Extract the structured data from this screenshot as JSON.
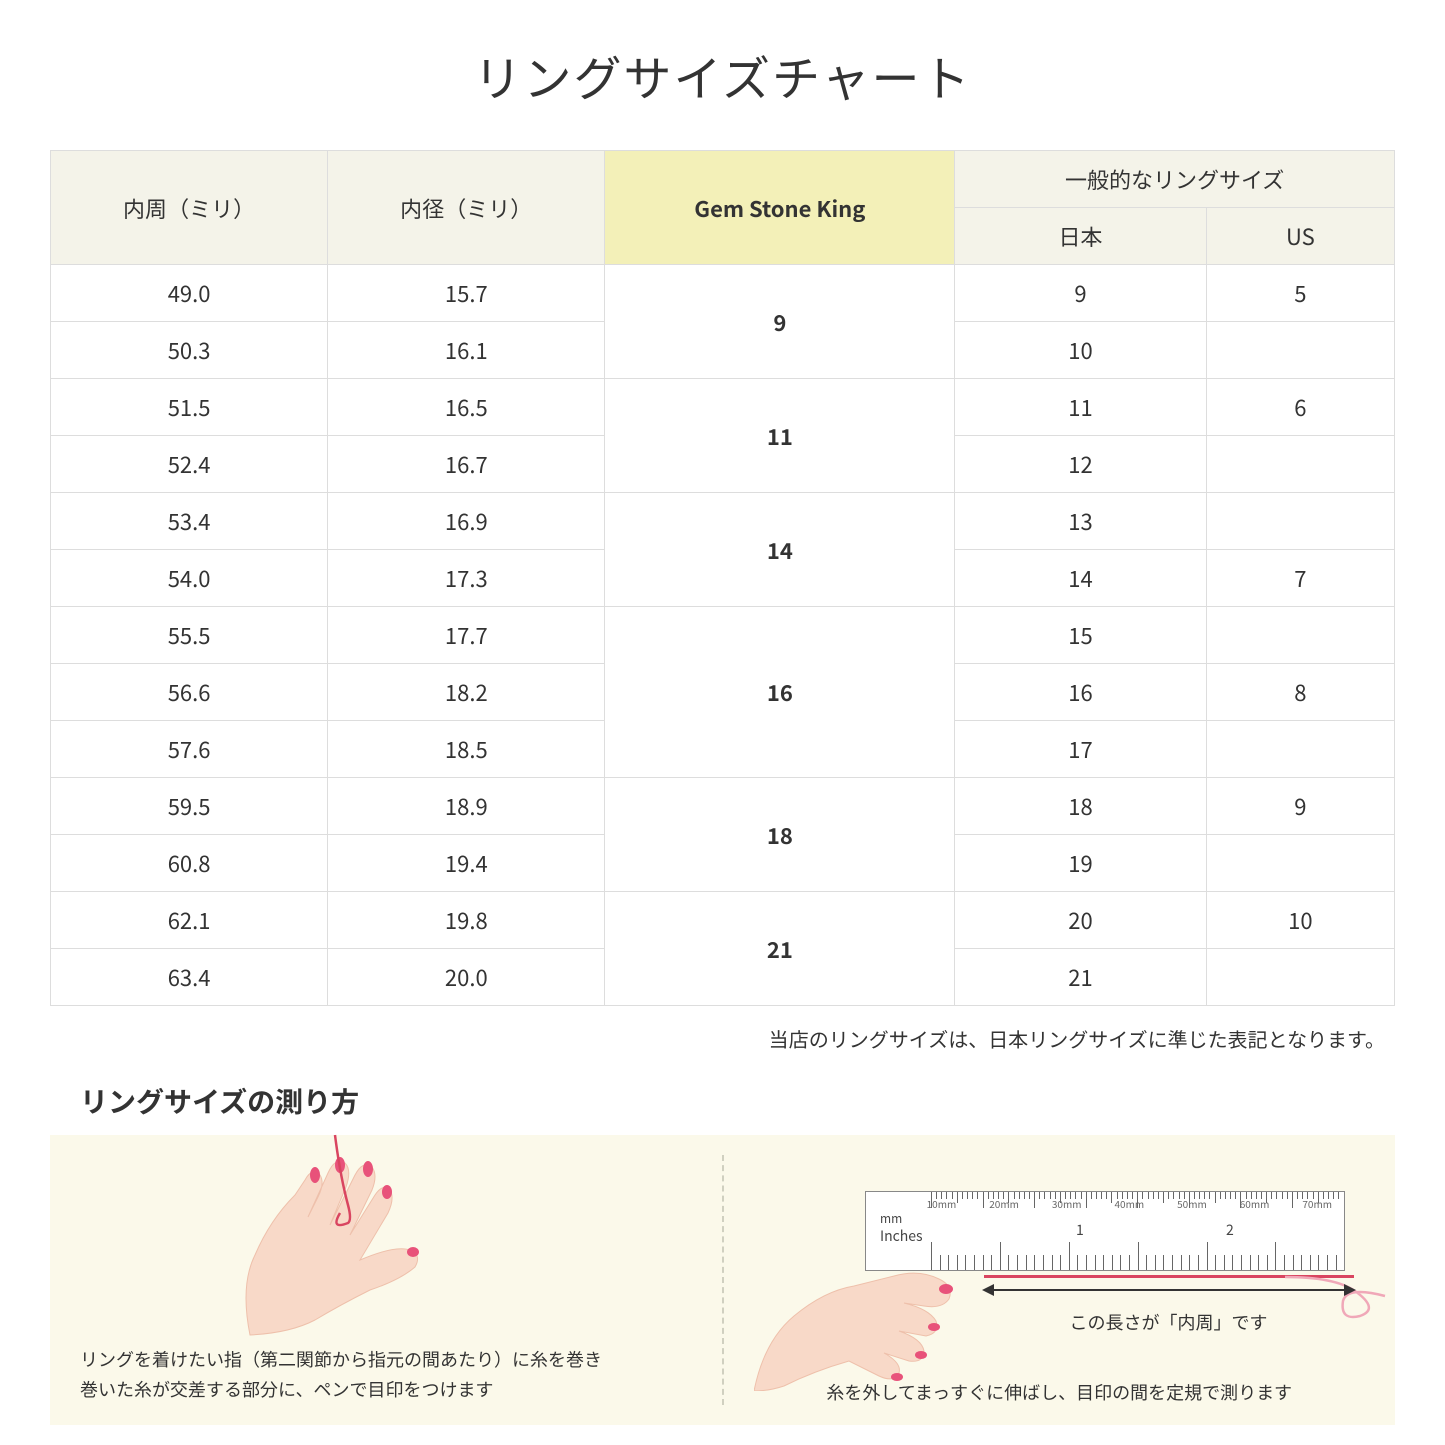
{
  "title": "リングサイズチャート",
  "table": {
    "headers": {
      "circumference": "内周（ミリ）",
      "diameter": "内径（ミリ）",
      "gsk": "Gem Stone King",
      "common_group": "一般的なリングサイズ",
      "japan": "日本",
      "us": "US"
    },
    "groups": [
      {
        "gsk": "9",
        "rows": [
          {
            "c": "49.0",
            "d": "15.7",
            "jp": "9",
            "us": "5"
          },
          {
            "c": "50.3",
            "d": "16.1",
            "jp": "10",
            "us": ""
          }
        ]
      },
      {
        "gsk": "11",
        "rows": [
          {
            "c": "51.5",
            "d": "16.5",
            "jp": "11",
            "us": "6"
          },
          {
            "c": "52.4",
            "d": "16.7",
            "jp": "12",
            "us": ""
          }
        ]
      },
      {
        "gsk": "14",
        "rows": [
          {
            "c": "53.4",
            "d": "16.9",
            "jp": "13",
            "us": ""
          },
          {
            "c": "54.0",
            "d": "17.3",
            "jp": "14",
            "us": "7"
          }
        ]
      },
      {
        "gsk": "16",
        "rows": [
          {
            "c": "55.5",
            "d": "17.7",
            "jp": "15",
            "us": ""
          },
          {
            "c": "56.6",
            "d": "18.2",
            "jp": "16",
            "us": "8"
          },
          {
            "c": "57.6",
            "d": "18.5",
            "jp": "17",
            "us": ""
          }
        ]
      },
      {
        "gsk": "18",
        "rows": [
          {
            "c": "59.5",
            "d": "18.9",
            "jp": "18",
            "us": "9"
          },
          {
            "c": "60.8",
            "d": "19.4",
            "jp": "19",
            "us": ""
          }
        ]
      },
      {
        "gsk": "21",
        "rows": [
          {
            "c": "62.1",
            "d": "19.8",
            "jp": "20",
            "us": "10"
          },
          {
            "c": "63.4",
            "d": "20.0",
            "jp": "21",
            "us": ""
          }
        ]
      }
    ]
  },
  "note": "当店のリングサイズは、日本リングサイズに準じた表記となります。",
  "howto": {
    "title": "リングサイズの測り方",
    "left_caption": "リングを着けたい指（第二関節から指元の間あたり）に糸を巻き\n巻いた糸が交差する部分に、ペンで目印をつけます",
    "right_caption": "糸を外してまっすぐに伸ばし、目印の間を定規で測ります",
    "measure_label": "この長さが「内周」です",
    "ruler": {
      "mm_label": "mm",
      "inches_label": "Inches",
      "mm_marks": [
        "10mm",
        "20mm",
        "30mm",
        "40mm",
        "50mm",
        "60mm",
        "70mm"
      ],
      "inch_marks": [
        "1",
        "2"
      ]
    }
  },
  "colors": {
    "header_bg": "#f4f3e9",
    "highlight_bg": "#f3f0b8",
    "border": "#dddddd",
    "panel_bg": "#fbf9ea",
    "skin": "#f8d9c8",
    "skin_shadow": "#eec0ab",
    "nail": "#e8527a",
    "thread": "#d94560"
  }
}
